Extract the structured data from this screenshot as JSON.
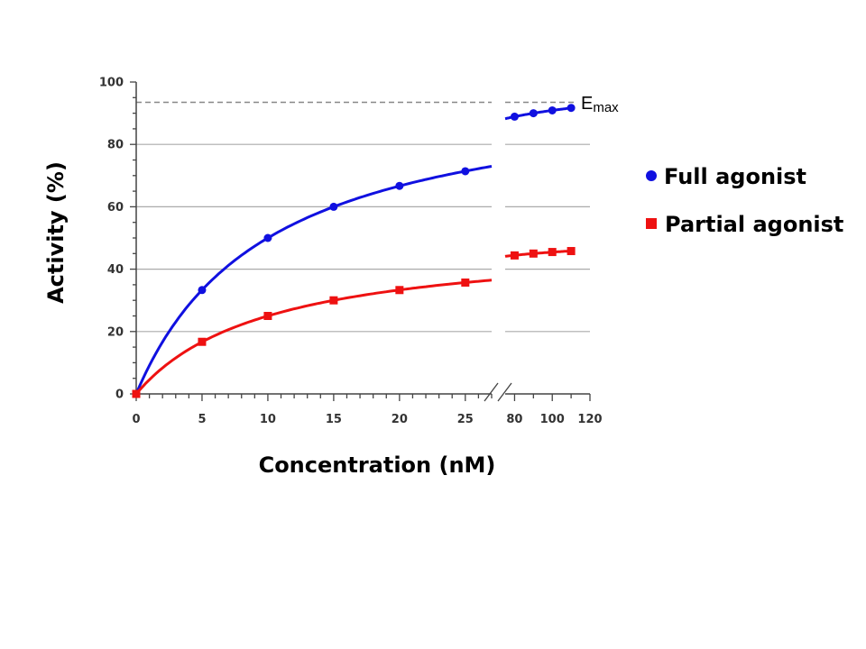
{
  "chart_data": {
    "type": "line",
    "xlabel": "Concentration (nM)",
    "ylabel": "Activity (%)",
    "ylim": [
      0,
      100
    ],
    "yticks": [
      "0",
      "20",
      "40",
      "60",
      "80",
      "100"
    ],
    "x_segments": [
      {
        "range": [
          0,
          27
        ],
        "ticks": [
          "0",
          "5",
          "10",
          "15",
          "20",
          "25"
        ]
      },
      {
        "range": [
          75,
          120
        ],
        "ticks": [
          "80",
          "100",
          "120"
        ]
      }
    ],
    "axis_break": true,
    "grid": "horizontal",
    "legend_position": "right",
    "reference_line": {
      "value": 93.5,
      "label_main": "E",
      "label_sub": "max"
    },
    "series": [
      {
        "name": "Full agonist",
        "color": "#1010e0",
        "marker": "circle",
        "curve_emax": 100,
        "curve_ec50": 10,
        "points": [
          [
            0,
            0
          ],
          [
            5,
            33.3
          ],
          [
            10,
            50
          ],
          [
            15,
            60
          ],
          [
            20,
            66.7
          ],
          [
            25,
            71.4
          ],
          [
            80,
            88.9
          ],
          [
            90,
            90
          ],
          [
            100,
            90.9
          ],
          [
            110,
            91.7
          ]
        ]
      },
      {
        "name": "Partial agonist",
        "color": "#ee1111",
        "marker": "square",
        "curve_emax": 50,
        "curve_ec50": 10,
        "points": [
          [
            0,
            0
          ],
          [
            5,
            16.7
          ],
          [
            10,
            25
          ],
          [
            15,
            30
          ],
          [
            20,
            33.3
          ],
          [
            25,
            35.7
          ],
          [
            80,
            44.4
          ],
          [
            90,
            45
          ],
          [
            100,
            45.5
          ],
          [
            110,
            45.8
          ]
        ]
      }
    ]
  }
}
